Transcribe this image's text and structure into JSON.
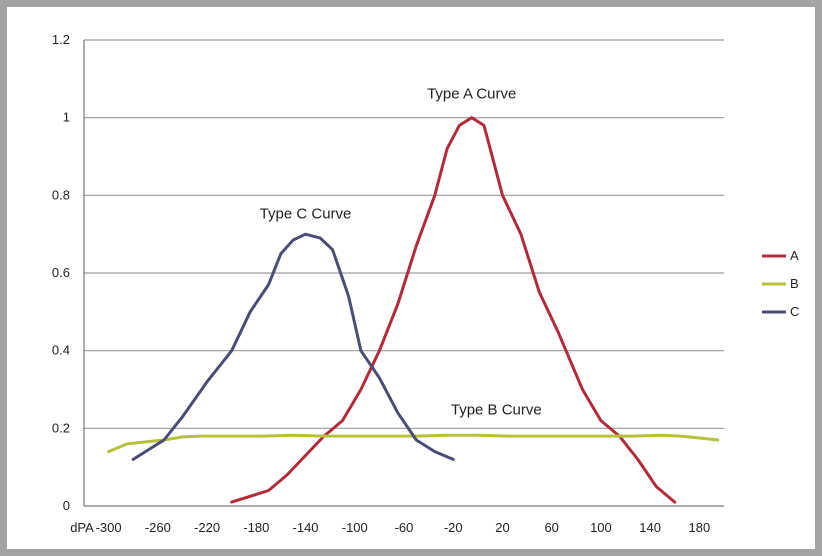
{
  "chart_data": {
    "type": "line",
    "title": "",
    "xlabel": "",
    "ylabel": "",
    "x_axis_label": "dPA",
    "xlim": [
      -320,
      200
    ],
    "ylim": [
      0,
      1.2
    ],
    "x_ticks": [
      -300,
      -260,
      -220,
      -180,
      -140,
      -100,
      -60,
      -20,
      20,
      60,
      100,
      140,
      180
    ],
    "y_ticks": [
      0,
      0.2,
      0.4,
      0.6,
      0.8,
      1,
      1.2
    ],
    "grid": "horizontal",
    "legend": "right",
    "series": [
      {
        "name": "A",
        "color": "#b32a3a",
        "points": [
          [
            -200,
            0.01
          ],
          [
            -185,
            0.025
          ],
          [
            -170,
            0.04
          ],
          [
            -155,
            0.08
          ],
          [
            -140,
            0.13
          ],
          [
            -125,
            0.18
          ],
          [
            -110,
            0.22
          ],
          [
            -95,
            0.3
          ],
          [
            -80,
            0.4
          ],
          [
            -65,
            0.52
          ],
          [
            -50,
            0.67
          ],
          [
            -35,
            0.8
          ],
          [
            -25,
            0.92
          ],
          [
            -15,
            0.98
          ],
          [
            -5,
            1.0
          ],
          [
            5,
            0.98
          ],
          [
            20,
            0.8
          ],
          [
            35,
            0.7
          ],
          [
            50,
            0.55
          ],
          [
            65,
            0.45
          ],
          [
            85,
            0.3
          ],
          [
            100,
            0.22
          ],
          [
            115,
            0.18
          ],
          [
            130,
            0.12
          ],
          [
            145,
            0.05
          ],
          [
            160,
            0.01
          ]
        ]
      },
      {
        "name": "B",
        "color": "#b5c23a",
        "points": [
          [
            -300,
            0.14
          ],
          [
            -285,
            0.16
          ],
          [
            -270,
            0.165
          ],
          [
            -255,
            0.17
          ],
          [
            -240,
            0.178
          ],
          [
            -225,
            0.18
          ],
          [
            -200,
            0.18
          ],
          [
            -175,
            0.18
          ],
          [
            -150,
            0.182
          ],
          [
            -125,
            0.18
          ],
          [
            -100,
            0.18
          ],
          [
            -75,
            0.18
          ],
          [
            -50,
            0.18
          ],
          [
            -25,
            0.182
          ],
          [
            0,
            0.182
          ],
          [
            25,
            0.18
          ],
          [
            50,
            0.18
          ],
          [
            75,
            0.18
          ],
          [
            100,
            0.18
          ],
          [
            125,
            0.18
          ],
          [
            150,
            0.182
          ],
          [
            165,
            0.18
          ],
          [
            180,
            0.175
          ],
          [
            195,
            0.17
          ]
        ]
      },
      {
        "name": "C",
        "color": "#4a4d74",
        "points": [
          [
            -280,
            0.12
          ],
          [
            -270,
            0.14
          ],
          [
            -255,
            0.17
          ],
          [
            -240,
            0.23
          ],
          [
            -220,
            0.32
          ],
          [
            -200,
            0.4
          ],
          [
            -185,
            0.5
          ],
          [
            -170,
            0.57
          ],
          [
            -160,
            0.65
          ],
          [
            -150,
            0.685
          ],
          [
            -140,
            0.7
          ],
          [
            -128,
            0.69
          ],
          [
            -118,
            0.66
          ],
          [
            -105,
            0.54
          ],
          [
            -95,
            0.4
          ],
          [
            -80,
            0.33
          ],
          [
            -65,
            0.24
          ],
          [
            -50,
            0.17
          ],
          [
            -35,
            0.14
          ],
          [
            -20,
            0.12
          ]
        ]
      }
    ],
    "annotations": [
      {
        "text": "Type A Curve",
        "x": -5,
        "y": 1.05
      },
      {
        "text": "Type C Curve",
        "x": -140,
        "y": 0.74
      },
      {
        "text": "Type B Curve",
        "x": 15,
        "y": 0.235
      }
    ]
  }
}
